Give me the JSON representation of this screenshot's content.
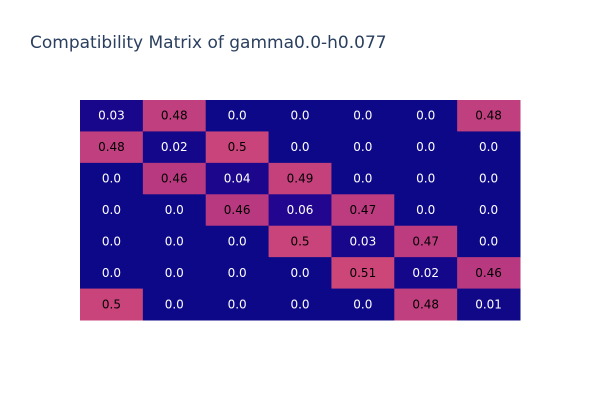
{
  "chart_data": {
    "type": "heatmap",
    "title": "Compatibility Matrix of gamma0.0-h0.077",
    "rows": [
      [
        "0.03",
        "0.48",
        "0.0",
        "0.0",
        "0.0",
        "0.0",
        "0.48"
      ],
      [
        "0.48",
        "0.02",
        "0.5",
        "0.0",
        "0.0",
        "0.0",
        "0.0"
      ],
      [
        "0.0",
        "0.46",
        "0.04",
        "0.49",
        "0.0",
        "0.0",
        "0.0"
      ],
      [
        "0.0",
        "0.0",
        "0.46",
        "0.06",
        "0.47",
        "0.0",
        "0.0"
      ],
      [
        "0.0",
        "0.0",
        "0.0",
        "0.5",
        "0.03",
        "0.47",
        "0.0"
      ],
      [
        "0.0",
        "0.0",
        "0.0",
        "0.0",
        "0.51",
        "0.02",
        "0.46"
      ],
      [
        "0.5",
        "0.0",
        "0.0",
        "0.0",
        "0.0",
        "0.48",
        "0.01"
      ]
    ],
    "colorscale": {
      "low": "#0d0887",
      "mid": "#6a00a8",
      "high": "#cc4778",
      "zmin": 0.0,
      "zmax": 0.51
    },
    "grid": false,
    "axes_visible": false
  }
}
